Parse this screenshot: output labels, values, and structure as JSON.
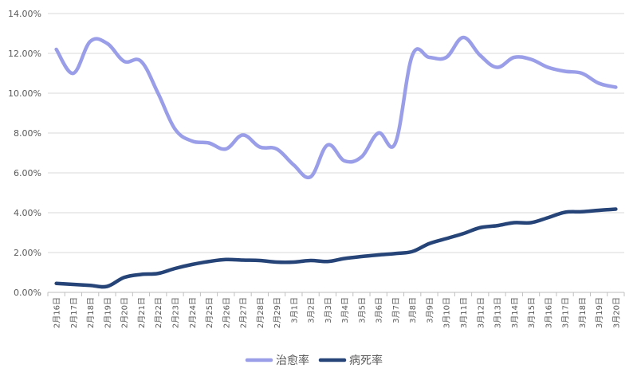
{
  "chart_data": {
    "type": "line",
    "categories": [
      "2月16日",
      "2月17日",
      "2月18日",
      "2月19日",
      "2月20日",
      "2月21日",
      "2月22日",
      "2月23日",
      "2月24日",
      "2月25日",
      "2月26日",
      "2月27日",
      "2月28日",
      "2月29日",
      "3月1日",
      "3月2日",
      "3月3日",
      "3月4日",
      "3月5日",
      "3月6日",
      "3月7日",
      "3月8日",
      "3月9日",
      "3月10日",
      "3月11日",
      "3月12日",
      "3月13日",
      "3月14日",
      "3月15日",
      "3月16日",
      "3月17日",
      "3月18日",
      "3月19日",
      "3月20日"
    ],
    "series": [
      {
        "name": "治愈率",
        "color": "#9a9ee8",
        "values": [
          12.2,
          11.0,
          12.6,
          12.5,
          11.6,
          11.6,
          10.0,
          8.2,
          7.6,
          7.5,
          7.2,
          7.9,
          7.3,
          7.2,
          6.4,
          5.8,
          7.4,
          6.6,
          6.8,
          8.0,
          7.5,
          11.9,
          11.8,
          11.8,
          12.8,
          11.9,
          11.3,
          11.8,
          11.7,
          11.3,
          11.1,
          11.0,
          10.5,
          10.3
        ]
      },
      {
        "name": "病死率",
        "color": "#264478",
        "values": [
          0.45,
          0.4,
          0.35,
          0.3,
          0.75,
          0.9,
          0.95,
          1.2,
          1.4,
          1.55,
          1.65,
          1.62,
          1.6,
          1.52,
          1.52,
          1.6,
          1.55,
          1.7,
          1.8,
          1.88,
          1.95,
          2.05,
          2.45,
          2.7,
          2.95,
          3.25,
          3.35,
          3.5,
          3.5,
          3.75,
          4.02,
          4.05,
          4.12,
          4.18
        ]
      }
    ],
    "y_ticks": [
      "0.00%",
      "2.00%",
      "4.00%",
      "6.00%",
      "8.00%",
      "10.00%",
      "12.00%",
      "14.00%"
    ],
    "ylim": [
      0,
      14
    ],
    "grid": true,
    "legend_position": "bottom"
  }
}
